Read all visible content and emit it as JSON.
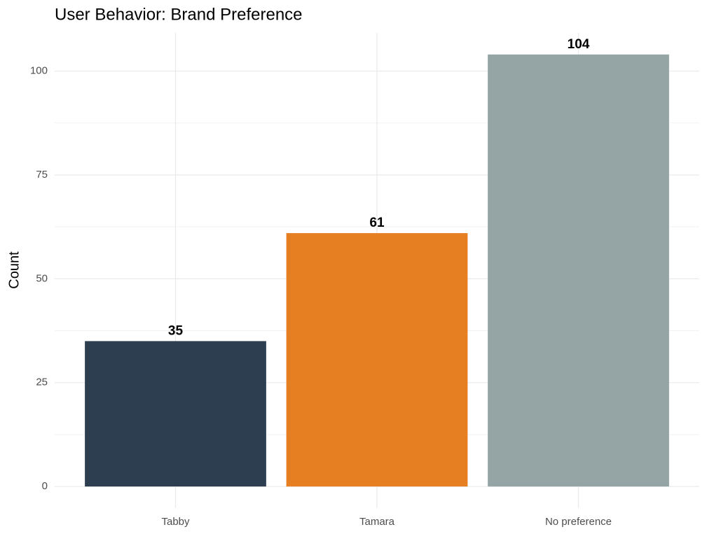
{
  "chart_data": {
    "type": "bar",
    "title": "User Behavior: Brand Preference",
    "y_label": "Count",
    "categories": [
      "Tabby",
      "Tamara",
      "No preference"
    ],
    "values": [
      35,
      61,
      104
    ],
    "colors": [
      "#2c3e50",
      "#e67e22",
      "#95a5a6"
    ],
    "ylim": [
      -5.2,
      109.2
    ],
    "yticks": [
      0,
      25,
      50,
      75,
      100
    ],
    "grid": true
  }
}
